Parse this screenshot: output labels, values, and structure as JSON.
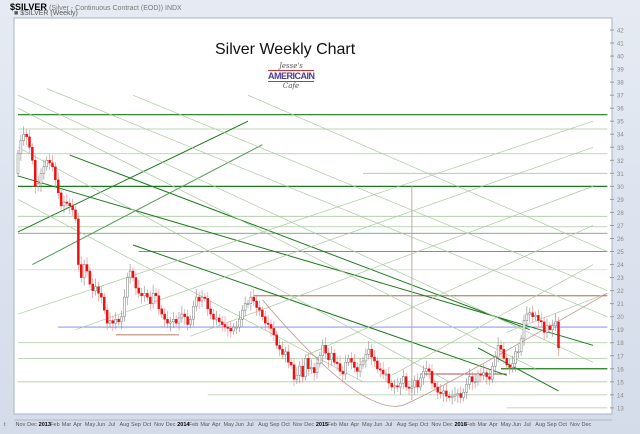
{
  "header": {
    "symbol": "$SILVER",
    "description": "(Silver - Continuous Contract (EOD)) INDX",
    "legend": "$SILVER (Weekly)"
  },
  "logo": {
    "top": "Jesse's",
    "mid": "AMERICAIN",
    "bot": "Cafe"
  },
  "chart_data": {
    "type": "candlestick",
    "title": "Silver Weekly Chart",
    "ylim": [
      12.5,
      42.8
    ],
    "y_ticks": [
      13,
      14,
      15,
      16,
      17,
      18,
      19,
      20,
      21,
      22,
      23,
      24,
      25,
      26,
      27,
      28,
      29,
      30,
      31,
      32,
      33,
      34,
      35,
      36,
      37,
      38,
      39,
      40,
      41,
      42
    ],
    "x_ticks": [
      "t",
      "Nov",
      "Dec",
      "2013",
      "Feb",
      "Mar",
      "Apr",
      "May",
      "Jun",
      "Jul",
      "Aug",
      "Sep",
      "Oct",
      "Nov",
      "Dec",
      "2014",
      "Feb",
      "Mar",
      "Apr",
      "May",
      "Jun",
      "Jul",
      "Aug",
      "Sep",
      "Oct",
      "Nov",
      "Dec",
      "2015",
      "Feb",
      "Mar",
      "Apr",
      "May",
      "Jun",
      "Jul",
      "Aug",
      "Sep",
      "Oct",
      "Nov",
      "Dec",
      "2016",
      "Feb",
      "Mar",
      "Apr",
      "May",
      "Jun",
      "Jul",
      "Aug",
      "Sep",
      "Oct",
      "Nov",
      "Dec"
    ],
    "first_week_open": 31.0,
    "weekly_close": [
      32.5,
      33.5,
      34.0,
      33.8,
      33.0,
      32.0,
      30.0,
      30.2,
      31.0,
      31.5,
      32.0,
      31.8,
      31.5,
      30.5,
      29.5,
      28.5,
      28.8,
      28.7,
      28.5,
      28.2,
      27.5,
      24.0,
      23.0,
      24.0,
      23.5,
      22.5,
      22.0,
      22.3,
      21.8,
      21.5,
      20.5,
      19.5,
      19.7,
      19.5,
      19.8,
      19.6,
      20.0,
      21.5,
      23.0,
      23.5,
      23.0,
      22.2,
      21.8,
      21.6,
      21.8,
      21.5,
      21.0,
      21.8,
      21.6,
      20.6,
      20.2,
      19.8,
      19.5,
      19.6,
      19.8,
      19.5,
      19.9,
      20.2,
      20.0,
      19.4,
      19.8,
      20.8,
      21.5,
      21.2,
      21.5,
      21.4,
      20.6,
      20.2,
      19.8,
      19.9,
      19.6,
      19.4,
      19.2,
      19.1,
      18.9,
      19.2,
      19.2,
      19.8,
      20.5,
      21.0,
      21.0,
      21.5,
      21.2,
      20.7,
      20.5,
      20.0,
      19.5,
      19.4,
      19.1,
      18.6,
      17.8,
      17.5,
      17.1,
      17.3,
      16.5,
      16.3,
      15.2,
      15.5,
      16.2,
      15.4,
      16.8,
      16.0,
      16.1,
      15.7,
      16.4,
      17.0,
      17.8,
      17.2,
      16.7,
      17.2,
      16.5,
      16.4,
      15.8,
      15.6,
      16.5,
      16.8,
      16.5,
      16.1,
      15.8,
      16.3,
      16.6,
      17.1,
      17.5,
      16.9,
      16.6,
      16.0,
      15.9,
      15.6,
      15.6,
      14.9,
      14.6,
      14.7,
      14.6,
      14.9,
      15.4,
      14.6,
      14.5,
      14.6,
      15.1,
      14.6,
      15.3,
      15.8,
      16.0,
      15.8,
      14.9,
      14.6,
      14.2,
      14.1,
      14.3,
      13.9,
      13.8,
      13.9,
      14.0,
      14.1,
      13.8,
      14.2,
      14.8,
      15.4,
      15.0,
      15.0,
      15.6,
      15.5,
      15.7,
      15.4,
      15.2,
      16.2,
      16.9,
      17.8,
      17.5,
      16.8,
      16.3,
      16.1,
      16.4,
      17.3,
      17.3,
      18.3,
      19.7,
      20.2,
      20.3,
      20.0,
      20.1,
      19.7,
      19.6,
      18.8,
      19.3,
      19.0,
      19.3,
      19.6,
      17.6
    ],
    "up_color": "#ffffff",
    "down_color": "#ee1111",
    "horizontal_lines": [
      {
        "price": 35.5,
        "from_week": 0,
        "to_week": 205,
        "color": "#1a7a1a"
      },
      {
        "price": 34.4,
        "from_week": 0,
        "to_week": 205,
        "color": "#a9c9a0"
      },
      {
        "price": 32.5,
        "from_week": 0,
        "to_week": 205,
        "color": "#a9c9a0"
      },
      {
        "price": 31.0,
        "from_week": 120,
        "to_week": 205,
        "color": "#a9c9a0"
      },
      {
        "price": 30.0,
        "from_week": 0,
        "to_week": 205,
        "color": "#1a7a1a"
      },
      {
        "price": 27.7,
        "from_week": 0,
        "to_week": 205,
        "color": "#a9c9a0"
      },
      {
        "price": 26.9,
        "from_week": 0,
        "to_week": 205,
        "color": "#a9c9a0"
      },
      {
        "price": 26.4,
        "from_week": 0,
        "to_week": 205,
        "color": "#4f9a4f"
      },
      {
        "price": 25.0,
        "from_week": 42,
        "to_week": 205,
        "color": "#a0522d"
      },
      {
        "price": 23.6,
        "from_week": 0,
        "to_week": 205,
        "color": "#c9dcc0"
      },
      {
        "price": 21.6,
        "from_week": 82,
        "to_week": 205,
        "color": "#a0522d"
      },
      {
        "price": 19.2,
        "from_week": 14,
        "to_week": 205,
        "color": "#7080ee"
      },
      {
        "price": 18.6,
        "from_week": 34,
        "to_week": 56,
        "color": "#a0522d"
      },
      {
        "price": 18.0,
        "from_week": 0,
        "to_week": 205,
        "color": "#a9c9a0"
      },
      {
        "price": 16.8,
        "from_week": 0,
        "to_week": 205,
        "color": "#a9c9a0"
      },
      {
        "price": 16.0,
        "from_week": 168,
        "to_week": 205,
        "color": "#1a7a1a"
      },
      {
        "price": 15.6,
        "from_week": 140,
        "to_week": 170,
        "color": "#8b1a1a"
      },
      {
        "price": 15.0,
        "from_week": 0,
        "to_week": 205,
        "color": "#a9c9a0"
      },
      {
        "price": 14.0,
        "from_week": 66,
        "to_week": 205,
        "color": "#a9c9a0"
      },
      {
        "price": 13.0,
        "from_week": 170,
        "to_week": 205,
        "color": "#a9c9a0"
      }
    ],
    "trend_lines": [
      {
        "from": [
          0,
          30.8
        ],
        "to": [
          200,
          17.8
        ],
        "color": "#1a7a1a"
      },
      {
        "from": [
          18,
          32.4
        ],
        "to": [
          178,
          19.0
        ],
        "color": "#1a7a1a"
      },
      {
        "from": [
          40,
          25.5
        ],
        "to": [
          170,
          15.5
        ],
        "color": "#1a7a1a"
      },
      {
        "from": [
          0,
          26.5
        ],
        "to": [
          80,
          35.0
        ],
        "color": "#1a7a1a"
      },
      {
        "from": [
          5,
          24.0
        ],
        "to": [
          85,
          33.2
        ],
        "color": "#4f9a4f"
      },
      {
        "from": [
          0,
          20.2
        ],
        "to": [
          200,
          35.0
        ],
        "color": "#a9c9a0"
      },
      {
        "from": [
          20,
          19.0
        ],
        "to": [
          200,
          33.0
        ],
        "color": "#a9c9a0"
      },
      {
        "from": [
          60,
          18.5
        ],
        "to": [
          200,
          30.0
        ],
        "color": "#a9c9a0"
      },
      {
        "from": [
          100,
          17.0
        ],
        "to": [
          200,
          27.0
        ],
        "color": "#a9c9a0"
      },
      {
        "from": [
          130,
          15.5
        ],
        "to": [
          200,
          24.0
        ],
        "color": "#a9c9a0"
      },
      {
        "from": [
          0,
          37.0
        ],
        "to": [
          200,
          16.5
        ],
        "color": "#a9c9a0"
      },
      {
        "from": [
          0,
          36.0
        ],
        "to": [
          180,
          16.0
        ],
        "color": "#a9c9a0"
      },
      {
        "from": [
          10,
          37.5
        ],
        "to": [
          205,
          20.0
        ],
        "color": "#a9c9a0"
      },
      {
        "from": [
          40,
          37.0
        ],
        "to": [
          205,
          22.0
        ],
        "color": "#a9c9a0"
      },
      {
        "from": [
          80,
          37.0
        ],
        "to": [
          205,
          25.0
        ],
        "color": "#a9c9a0"
      },
      {
        "from": [
          0,
          33.0
        ],
        "to": [
          150,
          15.0
        ],
        "color": "#a9c9a0"
      },
      {
        "from": [
          0,
          29.0
        ],
        "to": [
          120,
          15.0
        ],
        "color": "#a9c9a0"
      },
      {
        "from": [
          160,
          17.6
        ],
        "to": [
          188,
          14.3
        ],
        "color": "#1a7a1a"
      },
      {
        "from": [
          170,
          18.8
        ],
        "to": [
          205,
          21.8
        ],
        "color": "#a9c9a0"
      }
    ],
    "vertical_lines": [
      {
        "week": 137,
        "from_price": 30.0,
        "to_price": 13.6,
        "color": "#c0a8a8"
      }
    ],
    "arc": {
      "from": [
        85,
        21.3
      ],
      "bottom": [
        135,
        13.3
      ],
      "to": [
        205,
        21.8
      ],
      "color": "#c09090"
    }
  }
}
